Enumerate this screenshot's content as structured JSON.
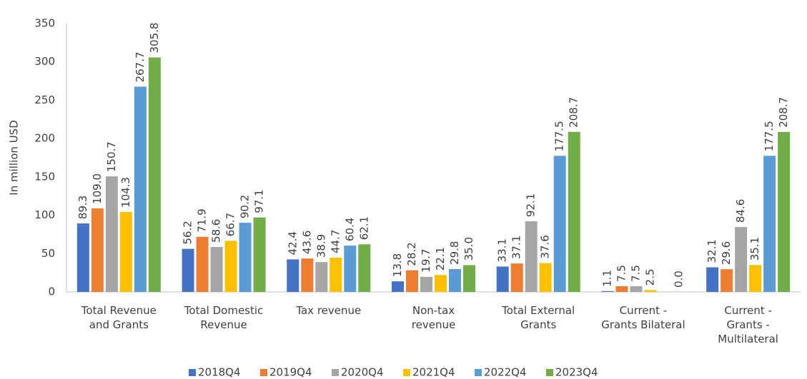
{
  "chart_data": {
    "type": "bar",
    "ylabel": "In million USD",
    "categories": [
      "Total Revenue\nand Grants",
      "Total Domestic\nRevenue",
      "Tax revenue",
      "Non-tax\nrevenue",
      "Total External\nGrants",
      "Current -\nGrants Bilateral",
      "Current -\nGrants -\nMultilateral"
    ],
    "series": [
      {
        "name": "2018Q4",
        "color": "#4472c4",
        "values": [
          89.3,
          56.2,
          42.4,
          13.8,
          33.1,
          1.1,
          32.1
        ],
        "value_labels": [
          "89.3",
          "56.2",
          "42.4",
          "13.8",
          "33.1",
          "1.1",
          "32.1"
        ]
      },
      {
        "name": "2019Q4",
        "color": "#ed7d31",
        "values": [
          109.0,
          71.9,
          43.6,
          28.2,
          37.1,
          7.5,
          29.6
        ],
        "value_labels": [
          "109.0",
          "71.9",
          "43.6",
          "28.2",
          "37.1",
          "7.5",
          "29.6"
        ]
      },
      {
        "name": "2020Q4",
        "color": "#a5a5a5",
        "values": [
          150.7,
          58.6,
          38.9,
          19.7,
          92.1,
          7.5,
          84.6
        ],
        "value_labels": [
          "150.7",
          "58.6",
          "38.9",
          "19.7",
          "92.1",
          "7.5",
          "84.6"
        ]
      },
      {
        "name": "2021Q4",
        "color": "#ffc000",
        "values": [
          104.3,
          66.7,
          44.7,
          22.1,
          37.6,
          2.5,
          35.1
        ],
        "value_labels": [
          "104.3",
          "66.7",
          "44.7",
          "22.1",
          "37.6",
          "2.5",
          "35.1"
        ]
      },
      {
        "name": "2022Q4",
        "color": "#5b9bd5",
        "values": [
          267.7,
          90.2,
          60.4,
          29.8,
          177.5,
          null,
          177.5
        ],
        "value_labels": [
          "267.7",
          "90.2",
          "60.4",
          "29.8",
          "177.5",
          null,
          "177.5"
        ]
      },
      {
        "name": "2023Q4",
        "color": "#70ad47",
        "values": [
          305.8,
          97.1,
          62.1,
          35.0,
          208.7,
          0.0,
          208.7
        ],
        "value_labels": [
          "305.8",
          "97.1",
          "62.1",
          "35.0",
          "208.7",
          "0.0",
          "208.7"
        ]
      }
    ],
    "ylim": [
      0,
      350
    ],
    "yticks": [
      0,
      50,
      100,
      150,
      200,
      250,
      300,
      350
    ],
    "grid": false,
    "legend": "bottom"
  }
}
